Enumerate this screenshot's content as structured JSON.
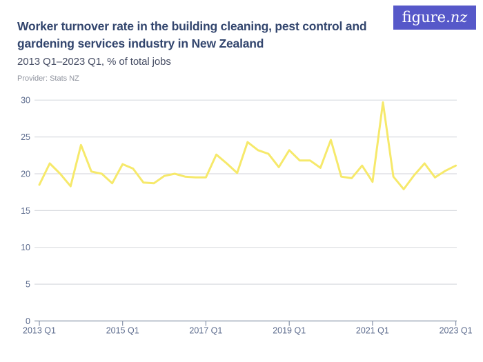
{
  "logo": {
    "text_main": "figure.",
    "text_suffix": "nz",
    "bg_color": "#5658c9",
    "text_color": "#ffffff"
  },
  "header": {
    "title_lines": [
      "Worker turnover rate in the building cleaning, pest control and",
      "gardening services industry in New Zealand"
    ],
    "subtitle": "2013 Q1–2023 Q1, % of total jobs",
    "provider": "Provider: Stats NZ"
  },
  "colors": {
    "title": "#33466e",
    "subtitle": "#454c63",
    "provider": "#8f939e",
    "axis_label": "#5d6c8e",
    "gridline": "#d9dbe0",
    "axis_line": "#8793a9",
    "line": "#f6e96b",
    "background": "#ffffff"
  },
  "chart_data": {
    "type": "line",
    "title": "Worker turnover rate in the building cleaning, pest control and gardening services industry in New Zealand",
    "subtitle": "2013 Q1–2023 Q1, % of total jobs",
    "provider": "Provider: Stats NZ",
    "xlabel": "",
    "ylabel": "% of total jobs",
    "ylim": [
      0,
      30
    ],
    "y_ticks": [
      0,
      5,
      10,
      15,
      20,
      25,
      30
    ],
    "grid": "horizontal",
    "legend": "none",
    "x_tick_labels": [
      "2013 Q1",
      "2015 Q1",
      "2017 Q1",
      "2019 Q1",
      "2021 Q1",
      "2023 Q1"
    ],
    "x_tick_indices": [
      0,
      8,
      16,
      24,
      32,
      40
    ],
    "x": [
      "2013 Q1",
      "2013 Q2",
      "2013 Q3",
      "2013 Q4",
      "2014 Q1",
      "2014 Q2",
      "2014 Q3",
      "2014 Q4",
      "2015 Q1",
      "2015 Q2",
      "2015 Q3",
      "2015 Q4",
      "2016 Q1",
      "2016 Q2",
      "2016 Q3",
      "2016 Q4",
      "2017 Q1",
      "2017 Q2",
      "2017 Q3",
      "2017 Q4",
      "2018 Q1",
      "2018 Q2",
      "2018 Q3",
      "2018 Q4",
      "2019 Q1",
      "2019 Q2",
      "2019 Q3",
      "2019 Q4",
      "2020 Q1",
      "2020 Q2",
      "2020 Q3",
      "2020 Q4",
      "2021 Q1",
      "2021 Q2",
      "2021 Q3",
      "2021 Q4",
      "2022 Q1",
      "2022 Q2",
      "2022 Q3",
      "2022 Q4",
      "2023 Q1"
    ],
    "series": [
      {
        "name": "Worker turnover rate (% of total jobs)",
        "color": "#f6e96b",
        "values": [
          18.5,
          21.4,
          20.0,
          18.3,
          23.9,
          20.3,
          20.0,
          18.7,
          21.3,
          20.7,
          18.8,
          18.7,
          19.7,
          20.0,
          19.6,
          19.5,
          19.5,
          22.6,
          21.4,
          20.1,
          24.3,
          23.2,
          22.7,
          20.9,
          23.2,
          21.8,
          21.8,
          20.8,
          24.6,
          19.6,
          19.4,
          21.1,
          18.9,
          29.7,
          19.6,
          17.9,
          19.8,
          21.4,
          19.5,
          20.4,
          21.1
        ]
      }
    ]
  }
}
